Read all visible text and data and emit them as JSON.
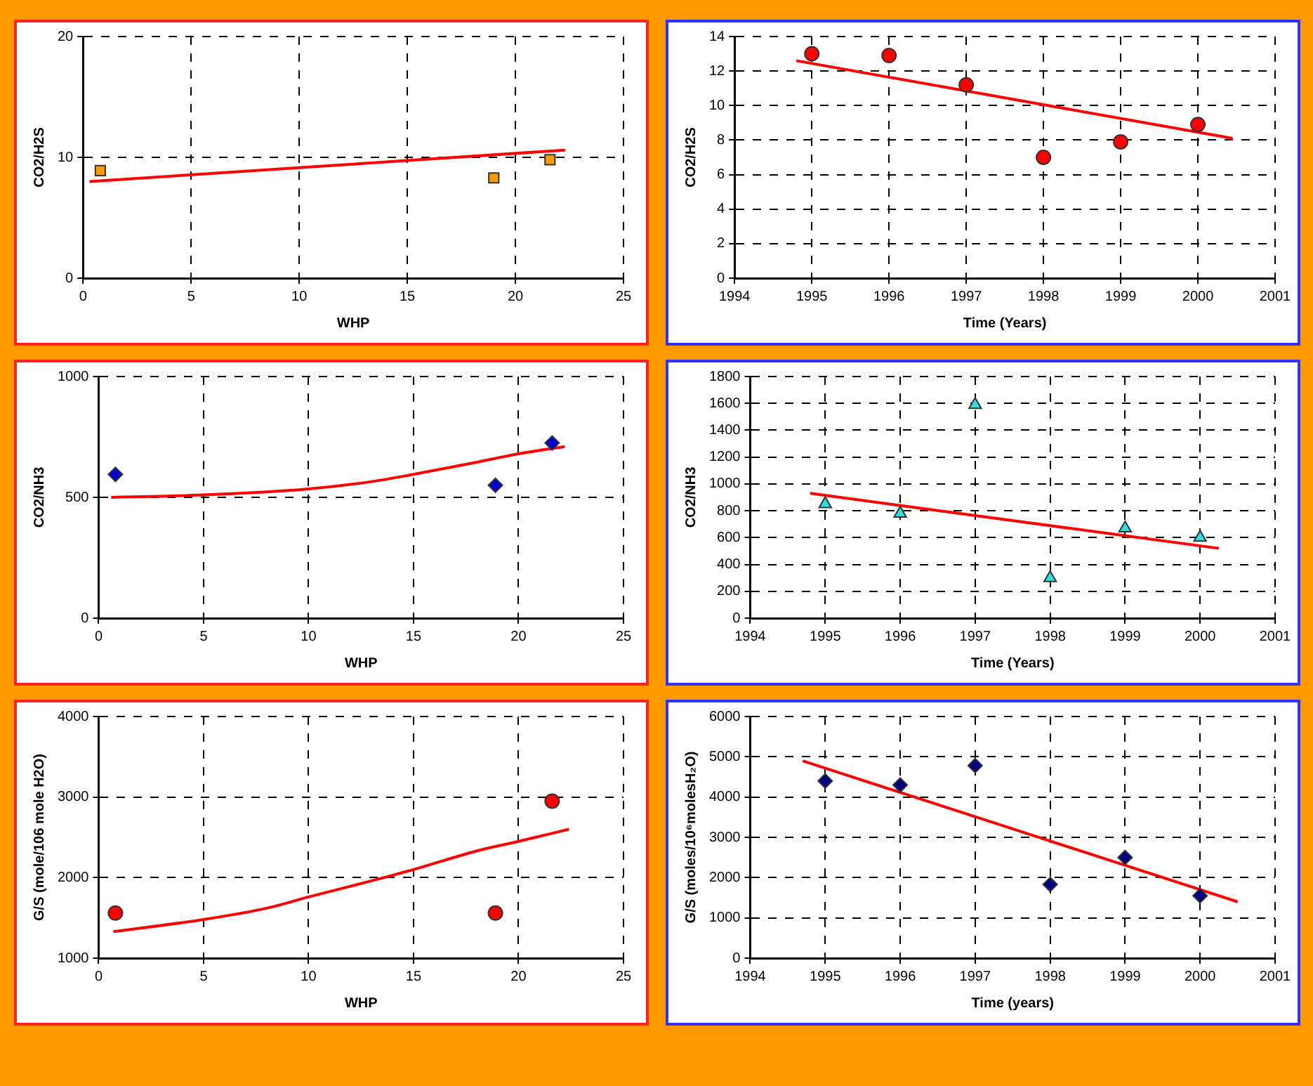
{
  "chart_data": [
    {
      "type": "scatter",
      "xlabel": "WHP",
      "ylabel": "CO2/H2S",
      "xlim": [
        0,
        25
      ],
      "xticks": [
        0,
        5,
        10,
        15,
        20,
        25
      ],
      "ylim": [
        0,
        20
      ],
      "yticks": [
        0,
        10,
        20
      ],
      "grid": true,
      "series": [
        {
          "type": "scatter",
          "marker": "square",
          "color": "#ff9900",
          "x": [
            0.8,
            19,
            21.6
          ],
          "values": [
            8.9,
            8.3,
            9.8
          ]
        },
        {
          "type": "line",
          "marker": "none",
          "line_style": "solid",
          "color": "#ff0000",
          "x": [
            0.3,
            22.3
          ],
          "values": [
            8.0,
            10.6
          ]
        }
      ]
    },
    {
      "type": "scatter",
      "xlabel": "Time (Years)",
      "ylabel": "CO2/H2S",
      "xlim": [
        1994,
        2001
      ],
      "xticks": [
        1994,
        1995,
        1996,
        1997,
        1998,
        1999,
        2000,
        2001
      ],
      "ylim": [
        0,
        14
      ],
      "yticks": [
        0,
        2,
        4,
        6,
        8,
        10,
        12,
        14
      ],
      "grid": true,
      "series": [
        {
          "type": "scatter",
          "marker": "circle",
          "color": "#ff0000",
          "x": [
            1995,
            1996,
            1997,
            1998,
            1999,
            2000
          ],
          "values": [
            13.0,
            12.9,
            11.2,
            7.0,
            7.9,
            8.9
          ]
        },
        {
          "type": "line",
          "marker": "none",
          "line_style": "solid",
          "color": "#ff0000",
          "x": [
            1994.8,
            2000.45
          ],
          "values": [
            12.6,
            8.1
          ]
        }
      ]
    },
    {
      "type": "scatter",
      "xlabel": "WHP",
      "ylabel": "CO2/NH3",
      "xlim": [
        0,
        25
      ],
      "xticks": [
        0,
        5,
        10,
        15,
        20,
        25
      ],
      "ylim": [
        0,
        1000
      ],
      "yticks": [
        0,
        500,
        1000
      ],
      "grid": true,
      "series": [
        {
          "type": "scatter",
          "marker": "diamond",
          "color": "#0000cc",
          "x": [
            0.8,
            18.9,
            21.6
          ],
          "values": [
            595,
            550,
            725
          ]
        },
        {
          "type": "line",
          "marker": "none",
          "line_style": "solid",
          "color": "#ff0000",
          "x": [
            0.6,
            5,
            10,
            13,
            15,
            18,
            20,
            22.2
          ],
          "values": [
            500,
            510,
            535,
            565,
            595,
            645,
            680,
            710
          ]
        }
      ]
    },
    {
      "type": "scatter",
      "xlabel": "Time (Years)",
      "ylabel": "CO2/NH3",
      "xlim": [
        1994,
        2001
      ],
      "xticks": [
        1994,
        1995,
        1996,
        1997,
        1998,
        1999,
        2000,
        2001
      ],
      "ylim": [
        0,
        1800
      ],
      "yticks": [
        0,
        200,
        400,
        600,
        800,
        1000,
        1200,
        1400,
        1600,
        1800
      ],
      "grid": true,
      "series": [
        {
          "type": "scatter",
          "marker": "triangle",
          "color": "#33dddd",
          "x": [
            1995,
            1996,
            1997,
            1998,
            1999,
            2000
          ],
          "values": [
            850,
            780,
            1590,
            300,
            670,
            600
          ]
        },
        {
          "type": "line",
          "marker": "none",
          "line_style": "solid",
          "color": "#ff0000",
          "x": [
            1994.8,
            2000.25
          ],
          "values": [
            930,
            520
          ]
        }
      ]
    },
    {
      "type": "scatter",
      "xlabel": "WHP",
      "ylabel": "G/S (mole/106 mole H2O)",
      "xlim": [
        0,
        25
      ],
      "xticks": [
        0,
        5,
        10,
        15,
        20,
        25
      ],
      "ylim": [
        1000,
        4000
      ],
      "yticks": [
        1000,
        2000,
        3000,
        4000
      ],
      "grid": true,
      "series": [
        {
          "type": "scatter",
          "marker": "circle",
          "color": "#ff0000",
          "x": [
            0.8,
            18.9,
            21.6
          ],
          "values": [
            1560,
            1560,
            2950
          ]
        },
        {
          "type": "line",
          "marker": "none",
          "line_style": "solid",
          "color": "#ff0000",
          "x": [
            0.7,
            5,
            8,
            10,
            13,
            15,
            18,
            20,
            22.4
          ],
          "values": [
            1330,
            1480,
            1620,
            1760,
            1960,
            2100,
            2330,
            2450,
            2600
          ]
        }
      ]
    },
    {
      "type": "scatter",
      "xlabel": "Time (years)",
      "ylabel": "G/S (moles/10⁶molesH₂O)",
      "xlim": [
        1994,
        2001
      ],
      "xticks": [
        1994,
        1995,
        1996,
        1997,
        1998,
        1999,
        2000,
        2001
      ],
      "ylim": [
        0,
        6000
      ],
      "yticks": [
        0,
        1000,
        2000,
        3000,
        4000,
        5000,
        6000
      ],
      "grid": true,
      "series": [
        {
          "type": "scatter",
          "marker": "diamond",
          "color": "#000080",
          "x": [
            1995,
            1996,
            1997,
            1998,
            1999,
            2000
          ],
          "values": [
            4400,
            4300,
            4780,
            1830,
            2500,
            1550
          ]
        },
        {
          "type": "line",
          "marker": "none",
          "line_style": "solid",
          "color": "#ff0000",
          "x": [
            1994.7,
            2000.5
          ],
          "values": [
            4900,
            1400
          ]
        }
      ]
    }
  ]
}
